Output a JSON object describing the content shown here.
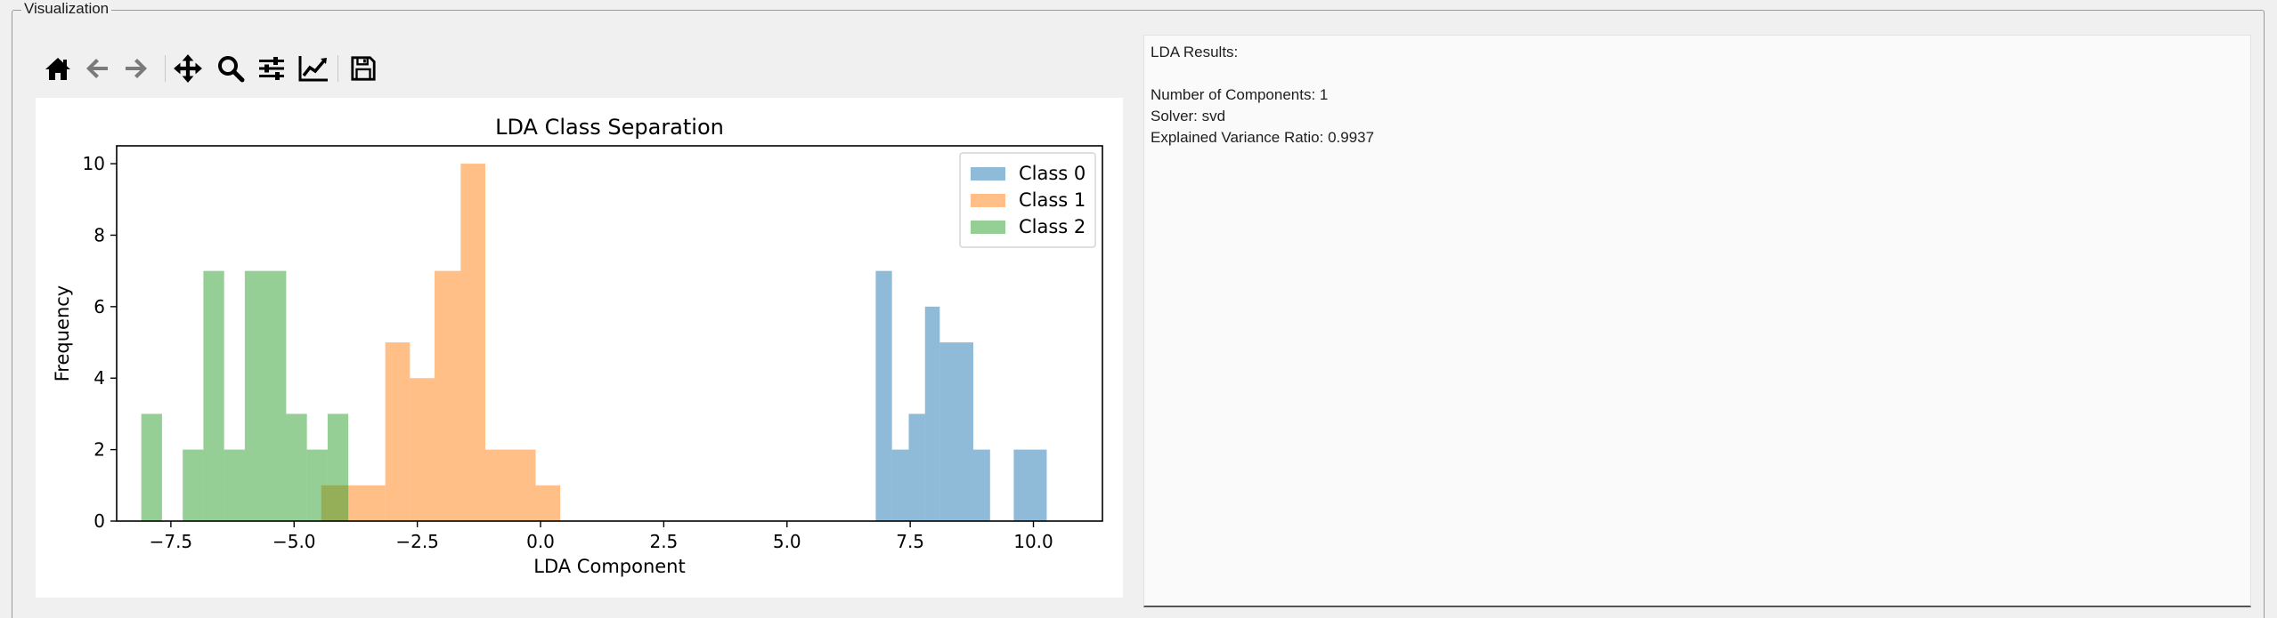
{
  "groupbox": {
    "title": "Visualization"
  },
  "toolbar": {
    "buttons": [
      {
        "name": "home-button",
        "icon": "home-icon",
        "tooltip": "Home"
      },
      {
        "name": "back-button",
        "icon": "arrow-left-icon",
        "tooltip": "Back"
      },
      {
        "name": "forward-button",
        "icon": "arrow-right-icon",
        "tooltip": "Forward"
      },
      {
        "name": "pan-button",
        "icon": "move-icon",
        "tooltip": "Pan"
      },
      {
        "name": "zoom-button",
        "icon": "magnifier-icon",
        "tooltip": "Zoom"
      },
      {
        "name": "configure-subplots-button",
        "icon": "sliders-icon",
        "tooltip": "Subplots"
      },
      {
        "name": "edit-axes-button",
        "icon": "line-chart-icon",
        "tooltip": "Customize"
      },
      {
        "name": "save-button",
        "icon": "floppy-disk-icon",
        "tooltip": "Save"
      }
    ],
    "icon_color": "#000000",
    "disabled_icon_color": "#7a7a7a"
  },
  "results": {
    "heading": "LDA Results:",
    "blank": "",
    "components": "Number of Components: 1",
    "solver": "Solver: svd",
    "variance": "Explained Variance Ratio: 0.9937"
  },
  "chart_data": {
    "type": "bar",
    "title": "LDA Class Separation",
    "xlabel": "LDA Component",
    "ylabel": "Frequency",
    "xlim": [
      -8.6,
      11.4
    ],
    "ylim": [
      0,
      10.5
    ],
    "xticks": [
      -7.5,
      -5.0,
      -2.5,
      0.0,
      2.5,
      5.0,
      7.5,
      10.0
    ],
    "xtick_labels": [
      "−7.5",
      "−5.0",
      "−2.5",
      "0.0",
      "2.5",
      "5.0",
      "7.5",
      "10.0"
    ],
    "yticks": [
      0,
      2,
      4,
      6,
      8,
      10
    ],
    "legend_position": "top-right",
    "grid": false,
    "alpha": 0.5,
    "series": [
      {
        "name": "Class 0",
        "color": "#1f77b4",
        "bins": [
          {
            "x0": 6.8,
            "x1": 7.13,
            "count": 7
          },
          {
            "x0": 7.13,
            "x1": 7.47,
            "count": 2
          },
          {
            "x0": 7.47,
            "x1": 7.8,
            "count": 3
          },
          {
            "x0": 7.8,
            "x1": 8.1,
            "count": 6
          },
          {
            "x0": 8.1,
            "x1": 8.78,
            "count": 5
          },
          {
            "x0": 8.78,
            "x1": 9.12,
            "count": 2
          },
          {
            "x0": 9.12,
            "x1": 9.6,
            "count": 0
          },
          {
            "x0": 9.6,
            "x1": 10.27,
            "count": 2
          }
        ]
      },
      {
        "name": "Class 1",
        "color": "#ff7f0e",
        "bins": [
          {
            "x0": -4.45,
            "x1": -3.95,
            "count": 1
          },
          {
            "x0": -3.95,
            "x1": -3.15,
            "count": 1
          },
          {
            "x0": -3.15,
            "x1": -2.65,
            "count": 5
          },
          {
            "x0": -2.65,
            "x1": -2.15,
            "count": 4
          },
          {
            "x0": -2.15,
            "x1": -1.62,
            "count": 7
          },
          {
            "x0": -1.62,
            "x1": -1.12,
            "count": 10
          },
          {
            "x0": -1.12,
            "x1": -0.1,
            "count": 2
          },
          {
            "x0": -0.1,
            "x1": 0.4,
            "count": 1
          }
        ]
      },
      {
        "name": "Class 2",
        "color": "#2ca02c",
        "bins": [
          {
            "x0": -8.1,
            "x1": -7.68,
            "count": 3
          },
          {
            "x0": -7.68,
            "x1": -7.26,
            "count": 0
          },
          {
            "x0": -7.26,
            "x1": -6.84,
            "count": 2
          },
          {
            "x0": -6.84,
            "x1": -6.42,
            "count": 7
          },
          {
            "x0": -6.42,
            "x1": -6.0,
            "count": 2
          },
          {
            "x0": -6.0,
            "x1": -5.16,
            "count": 7
          },
          {
            "x0": -5.16,
            "x1": -4.74,
            "count": 3
          },
          {
            "x0": -4.74,
            "x1": -4.32,
            "count": 2
          },
          {
            "x0": -4.32,
            "x1": -3.9,
            "count": 3
          }
        ]
      }
    ]
  }
}
